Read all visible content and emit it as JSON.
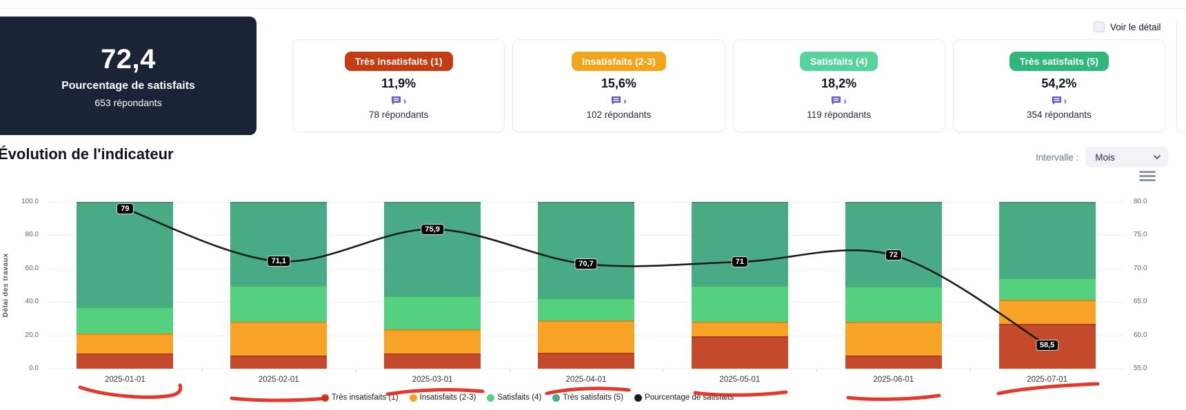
{
  "header": {
    "detail_checkbox_label": "Voir le détail"
  },
  "kpi_card": {
    "value": "72,4",
    "label": "Pourcentage de satisfaits",
    "respondents": "653 répondants"
  },
  "stat_cards": [
    {
      "badge": "Très insatisfaits (1)",
      "badge_color": "#c43c12",
      "percent": "11,9%",
      "respondents": "78 répondants"
    },
    {
      "badge": "Insatisfaits (2-3)",
      "badge_color": "#f2a41b",
      "percent": "15,6%",
      "respondents": "102 répondants"
    },
    {
      "badge": "Satisfaits (4)",
      "badge_color": "#57d39d",
      "percent": "18,2%",
      "respondents": "119 répondants"
    },
    {
      "badge": "Très satisfaits (5)",
      "badge_color": "#31b67c",
      "percent": "54,2%",
      "respondents": "354 répondants"
    }
  ],
  "section": {
    "title": "Évolution de l'indicateur",
    "interval_label": "Intervalle :",
    "interval_value": "Mois"
  },
  "icons": {
    "comment_icon_color": "#6458c8",
    "comment_chevron": "›"
  },
  "chart_data": {
    "type": "bar",
    "subtype": "stacked-percent-with-line-overlay",
    "categories": [
      "2025-01-01",
      "2025-02-01",
      "2025-03-01",
      "2025-04-01",
      "2025-05-01",
      "2025-06-01",
      "2025-07-01"
    ],
    "series": [
      {
        "name": "Très insatisfaits (1)",
        "color": "#c54a2c",
        "values": [
          9,
          8,
          9,
          9.5,
          19.5,
          8,
          27
        ]
      },
      {
        "name": "Insatisfaits (2-3)",
        "color": "#f7a325",
        "values": [
          12,
          20,
          14.5,
          19.5,
          8.5,
          20,
          14.5
        ]
      },
      {
        "name": "Satisfaits (4)",
        "color": "#53d17f",
        "values": [
          16,
          22,
          20.5,
          13.5,
          22,
          21.5,
          13
        ]
      },
      {
        "name": "Très satisfaits (5)",
        "color": "#49ab85",
        "values": [
          63,
          50,
          56,
          57.5,
          50,
          50.5,
          45.5
        ]
      }
    ],
    "line_series": {
      "name": "Pourcentage de satisfaits",
      "color": "#1b1b1b",
      "axis": "right",
      "values": [
        79,
        71.1,
        75.9,
        70.7,
        71,
        72,
        58.5
      ],
      "labels": [
        "79",
        "71,1",
        "75,9",
        "70,7",
        "71",
        "72",
        "58,5"
      ]
    },
    "left_axis": {
      "label": "Délai des travaux",
      "min": 0,
      "max": 100,
      "ticks": [
        "100.0",
        "80.0",
        "60.0",
        "40.0",
        "20.0",
        "0.0"
      ]
    },
    "right_axis": {
      "min": 55,
      "max": 80,
      "ticks": [
        "80.0",
        "75.0",
        "70.0",
        "65.0",
        "60.0",
        "55.0"
      ]
    },
    "grid": true,
    "legend_position": "bottom",
    "annotation_color": "#e02214"
  }
}
